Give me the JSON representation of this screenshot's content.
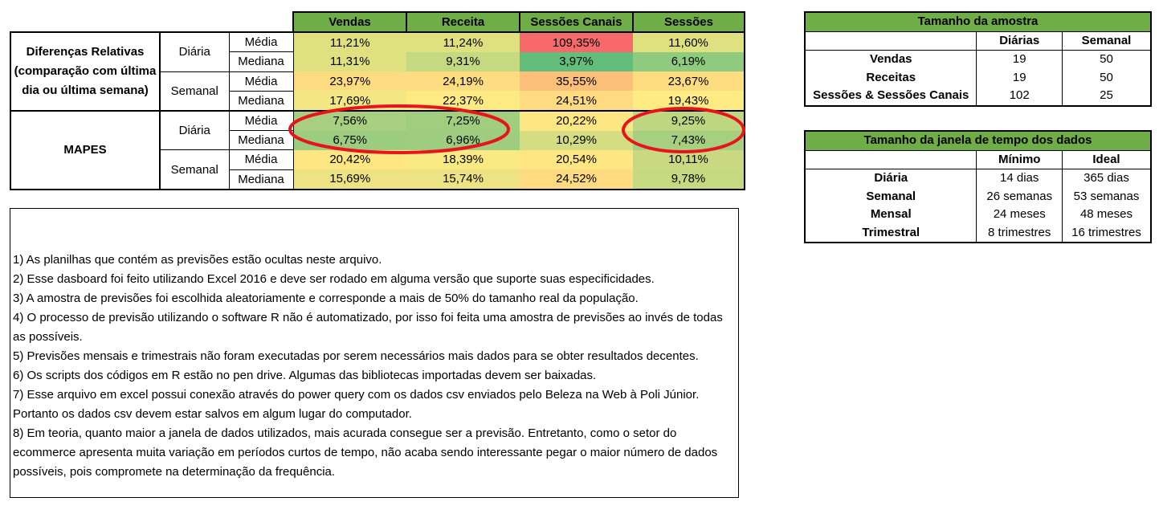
{
  "main_table": {
    "columns": [
      "Vendas",
      "Receita",
      "Sessões Canais",
      "Sessões"
    ],
    "groups": {
      "dif_label": "Diferenças Relativas (comparação com última dia ou última semana)",
      "mapes_label": "MAPES"
    },
    "periods": {
      "daily": "Diária",
      "weekly": "Semanal"
    },
    "stats": {
      "mean": "Média",
      "median": "Mediana"
    },
    "rows": [
      {
        "values": [
          "11,21%",
          "11,24%",
          "109,35%",
          "11,60%"
        ],
        "colors": [
          "#dfe180",
          "#dfe180",
          "#f8696b",
          "#dfe180"
        ]
      },
      {
        "values": [
          "11,31%",
          "9,31%",
          "3,97%",
          "6,19%"
        ],
        "colors": [
          "#dfe180",
          "#c5d980",
          "#63be7b",
          "#8fcb7e"
        ]
      },
      {
        "values": [
          "23,97%",
          "24,19%",
          "35,55%",
          "23,67%"
        ],
        "colors": [
          "#fedc81",
          "#fedc81",
          "#fcc07b",
          "#fedd81"
        ]
      },
      {
        "values": [
          "17,69%",
          "22,37%",
          "24,51%",
          "19,43%"
        ],
        "colors": [
          "#f3e783",
          "#feea83",
          "#fedb81",
          "#ffeb84"
        ]
      },
      {
        "values": [
          "7,56%",
          "7,25%",
          "20,22%",
          "9,25%"
        ],
        "colors": [
          "#a8cf7f",
          "#a1cd7f",
          "#fee683",
          "#bed67f"
        ]
      },
      {
        "values": [
          "6,75%",
          "6,96%",
          "10,29%",
          "7,43%"
        ],
        "colors": [
          "#9ccc7f",
          "#9ecd7f",
          "#d4dd81",
          "#a6cf7f"
        ]
      },
      {
        "values": [
          "20,42%",
          "18,39%",
          "20,54%",
          "10,11%"
        ],
        "colors": [
          "#fee683",
          "#fbea84",
          "#fee683",
          "#cad981"
        ]
      },
      {
        "values": [
          "15,69%",
          "15,74%",
          "24,52%",
          "9,78%"
        ],
        "colors": [
          "#ede384",
          "#ede384",
          "#fedb81",
          "#c5d980"
        ]
      }
    ]
  },
  "amostra": {
    "title": "Tamanho da amostra",
    "headers": [
      "",
      "Diárias",
      "Semanal"
    ],
    "rows": [
      {
        "label": "Vendas",
        "a": "19",
        "b": "50"
      },
      {
        "label": "Receitas",
        "a": "19",
        "b": "50"
      },
      {
        "label": "Sessões & Sessões Canais",
        "a": "102",
        "b": "25"
      }
    ]
  },
  "janela": {
    "title": "Tamanho da janela de tempo dos dados",
    "headers": [
      "",
      "Mínimo",
      "Ideal"
    ],
    "rows": [
      {
        "label": "Diária",
        "a": "14 dias",
        "b": "365 dias"
      },
      {
        "label": "Semanal",
        "a": "26 semanas",
        "b": "53 semanas"
      },
      {
        "label": "Mensal",
        "a": "24 meses",
        "b": "48 meses"
      },
      {
        "label": "Trimestral",
        "a": "8 trimestres",
        "b": "16 trimestres"
      }
    ]
  },
  "notes": [
    "1) As planilhas que contém as previsões estão ocultas neste arquivo.",
    "2) Esse dasboard foi feito utilizando Excel 2016 e deve ser rodado em alguma versão que suporte suas especificidades.",
    "3) A amostra de previsões foi escolhida aleatoriamente e corresponde a mais de 50% do tamanho real da população.",
    "4) O processo de previsão utilizando o software R não é automatizado, por isso foi feita uma amostra de previsões ao invés de todas as possíveis.",
    "5) Previsões mensais e trimestrais não foram executadas por serem necessários mais dados para se obter resultados decentes.",
    "6) Os scripts dos códigos em R estão no pen drive. Algumas das bibliotecas importadas devem ser baixadas.",
    "7) Esse arquivo em excel possui conexão através  do power query com os dados csv enviados pelo Beleza na Web à Poli Júnior. Portanto os dados csv devem estar salvos em algum lugar do computador.",
    "8) Em teoria, quanto maior a janela de dados utilizados, mais acurada consegue ser a previsão. Entretanto, como o setor do ecommerce apresenta muita variação em períodos curtos de tempo, não acaba sendo interessante pegar o maior número de dados possíveis, pois compromete na determinação da frequência."
  ],
  "highlight_color": "#e8141c"
}
